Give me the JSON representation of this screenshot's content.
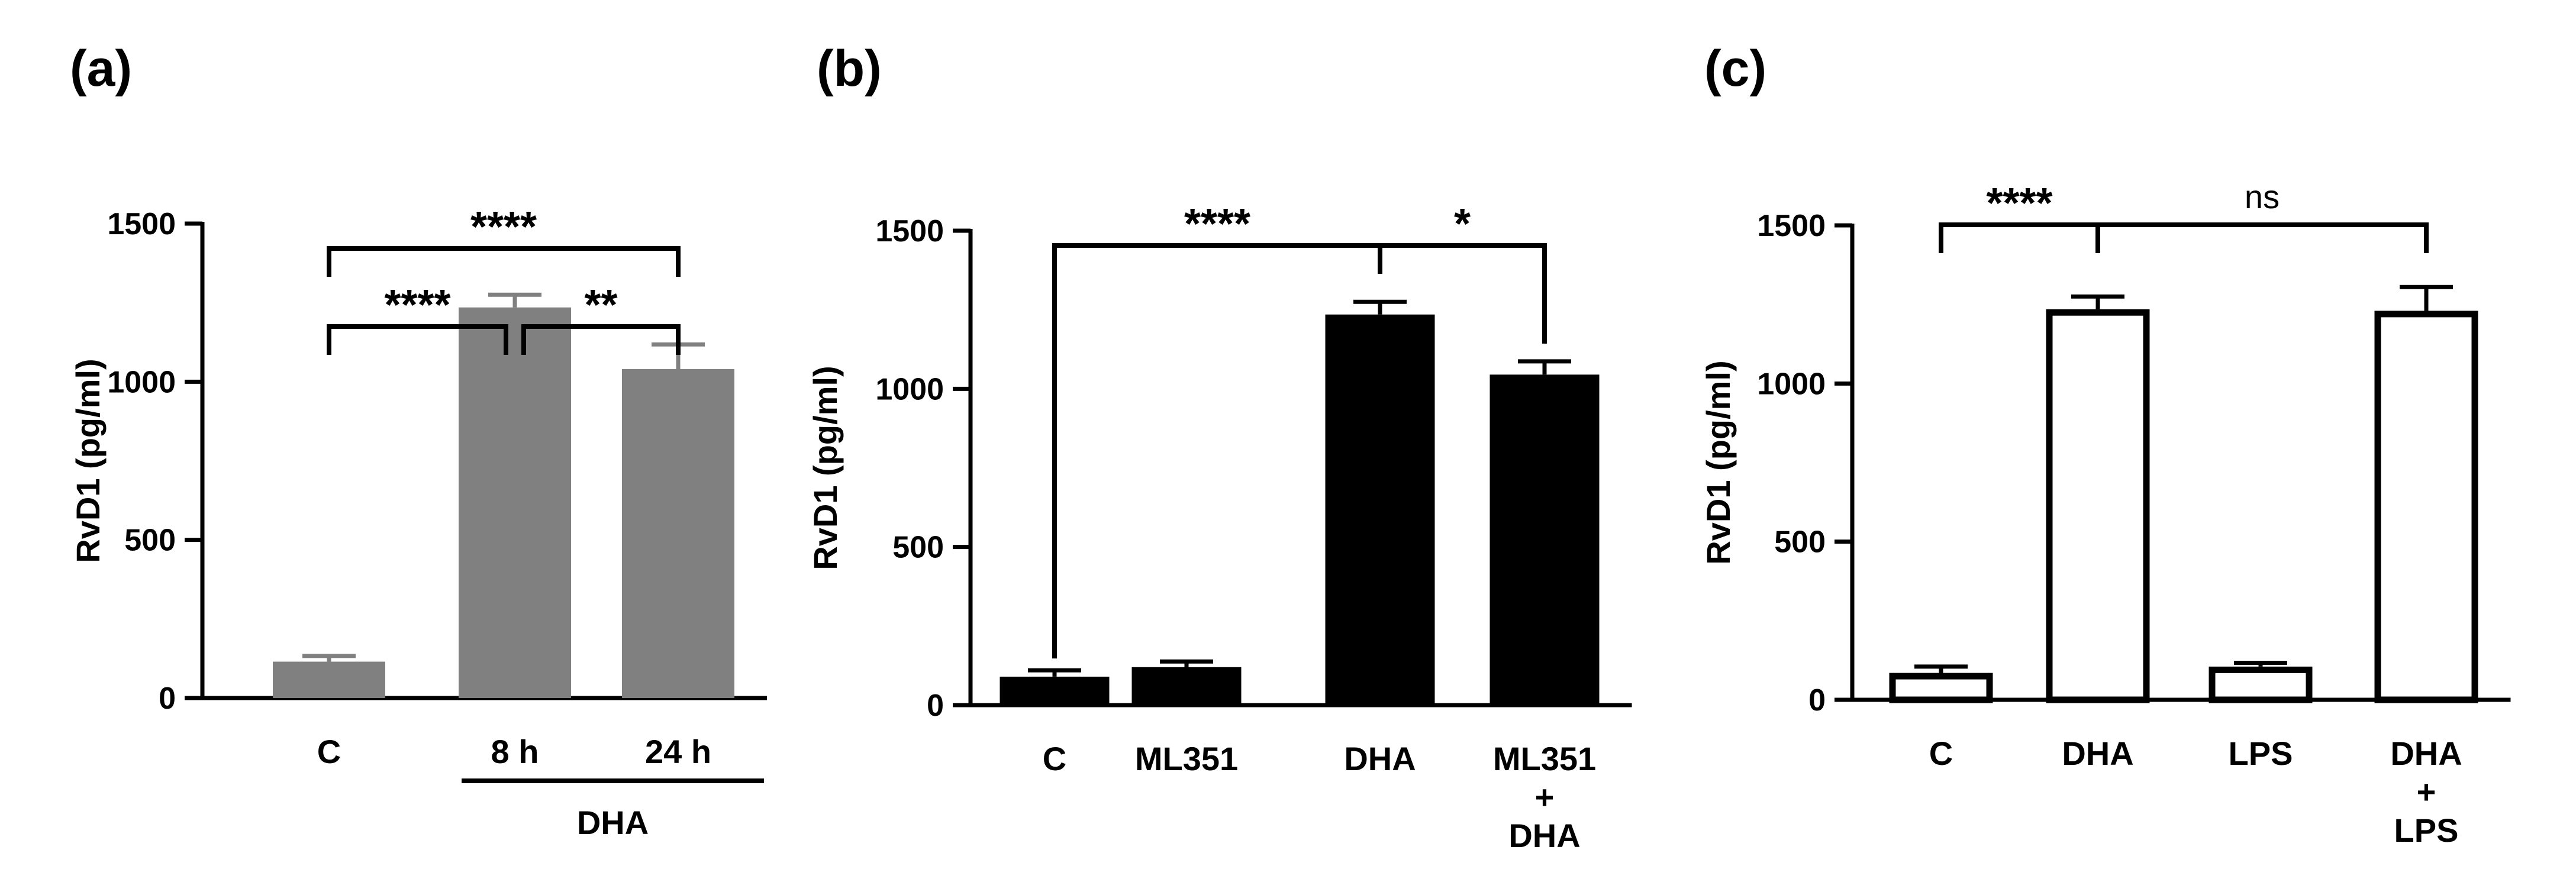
{
  "chart_data": [
    {
      "type": "bar",
      "panel": "(a)",
      "ylabel": "RvD1 (pg/ml)",
      "ylim": [
        0,
        1500
      ],
      "yticks": [
        0,
        500,
        1000,
        1500
      ],
      "categories": [
        "C",
        "8 h",
        "24 h"
      ],
      "category_lines": [
        [
          "C"
        ],
        [
          "8 h"
        ],
        [
          "24 h"
        ]
      ],
      "values": [
        115,
        1235,
        1040
      ],
      "errors": [
        18,
        40,
        78
      ],
      "bar_color": "#808080",
      "group_label": {
        "text": "DHA",
        "from": 1,
        "to": 2
      },
      "significance": [
        {
          "from": 0,
          "to": 2,
          "label": "****"
        },
        {
          "from": 0,
          "to": 1,
          "label": "****"
        },
        {
          "from": 1,
          "to": 2,
          "label": "**"
        }
      ]
    },
    {
      "type": "bar",
      "panel": "(b)",
      "ylabel": "RvD1 (pg/ml)",
      "ylim": [
        0,
        1500
      ],
      "yticks": [
        0,
        500,
        1000,
        1500
      ],
      "categories": [
        "C",
        "ML351",
        "DHA",
        "ML351 + DHA"
      ],
      "category_lines": [
        [
          "C"
        ],
        [
          "ML351"
        ],
        [
          "DHA"
        ],
        [
          "ML351",
          "+",
          "DHA"
        ]
      ],
      "values": [
        90,
        120,
        1235,
        1045
      ],
      "errors": [
        20,
        18,
        40,
        42
      ],
      "bar_color": "#000000",
      "significance": [
        {
          "from": 0,
          "to": 2,
          "label": "****"
        },
        {
          "from": 2,
          "to": 3,
          "label": "*"
        }
      ]
    },
    {
      "type": "bar",
      "panel": "(c)",
      "ylabel": "RvD1 (pg/ml)",
      "ylim": [
        0,
        1500
      ],
      "yticks": [
        0,
        500,
        1000,
        1500
      ],
      "categories": [
        "C",
        "DHA",
        "LPS",
        "DHA + LPS"
      ],
      "category_lines": [
        [
          "C"
        ],
        [
          "DHA"
        ],
        [
          "LPS"
        ],
        [
          "DHA",
          "+",
          "LPS"
        ]
      ],
      "values": [
        85,
        1235,
        105,
        1230
      ],
      "errors": [
        20,
        40,
        12,
        75
      ],
      "bar_color": "#ffffff",
      "significance": [
        {
          "from": 0,
          "to": 1,
          "label": "****"
        },
        {
          "from": 1,
          "to": 3,
          "label": "ns"
        }
      ]
    }
  ]
}
